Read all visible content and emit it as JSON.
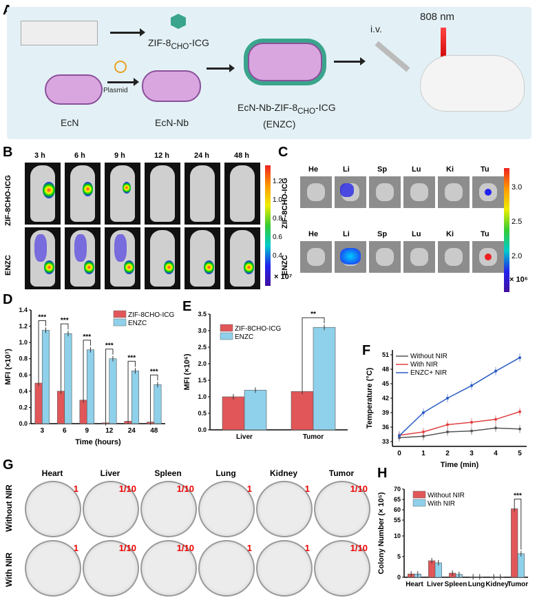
{
  "panels": {
    "A": "A",
    "B": "B",
    "C": "C",
    "D": "D",
    "E": "E",
    "F": "F",
    "G": "G",
    "H": "H"
  },
  "panelA": {
    "zif": "ZIF-8",
    "zif_sub": "CHO",
    "zif_suf": "-ICG",
    "plasmid": "Plasmid",
    "ecn": "EcN",
    "ecnnb": "EcN-Nb",
    "enzc_line1": "EcN-Nb-ZIF-8",
    "enzc_sub": "CHO",
    "enzc_suf": "-ICG",
    "enzc_line2": "(ENZC)",
    "iv": "i.v.",
    "laser": "808 nm"
  },
  "panelB": {
    "times": [
      "3 h",
      "6 h",
      "9 h",
      "12 h",
      "24 h",
      "48 h"
    ],
    "rows": [
      "ZIF-8CHO-ICG",
      "ENZC"
    ],
    "scale_ticks": [
      "1.2",
      "1.0",
      "0.8",
      "0.6",
      "0.4"
    ],
    "scale_unit": "× 10⁷"
  },
  "panelC": {
    "organs": [
      "He",
      "Li",
      "Sp",
      "Lu",
      "Ki",
      "Tu"
    ],
    "rows": [
      "ZIF-8CHO-ICG",
      "ENZC"
    ],
    "scale_ticks": [
      "3.0",
      "2.5",
      "2.0"
    ],
    "scale_unit": "× 10⁶"
  },
  "panelG": {
    "organs": [
      "Heart",
      "Liver",
      "Spleen",
      "Lung",
      "Kidney",
      "Tumor"
    ],
    "rows": [
      "Without NIR",
      "With NIR"
    ],
    "dilutions": [
      [
        "1",
        "1/10",
        "1/10",
        "1",
        "1",
        "1/10"
      ],
      [
        "1",
        "1/10",
        "1/10",
        "1",
        "1",
        "1/10"
      ]
    ]
  },
  "chart_data": [
    {
      "id": "D",
      "type": "bar",
      "categories": [
        "3",
        "6",
        "9",
        "12",
        "24",
        "48"
      ],
      "xlabel": "Time (hours)",
      "ylabel": "MFI (×10⁷)",
      "ylim": [
        0,
        1.4
      ],
      "yticks": [
        "0.0",
        "0.2",
        "0.4",
        "0.6",
        "0.8",
        "1.0",
        "1.2",
        "1.4"
      ],
      "legend": "top-right",
      "series": [
        {
          "name": "ZIF-8CHO-ICG",
          "color": "#e15759",
          "values": [
            0.5,
            0.4,
            0.29,
            0.01,
            0.03,
            0.02
          ]
        },
        {
          "name": "ENZC",
          "color": "#8fd0ea",
          "values": [
            1.15,
            1.11,
            0.91,
            0.8,
            0.65,
            0.48
          ]
        }
      ],
      "significance": [
        "***",
        "***",
        "***",
        "***",
        "***",
        "***"
      ]
    },
    {
      "id": "E",
      "type": "bar",
      "categories": [
        "Liver",
        "Tumor"
      ],
      "xlabel": "",
      "ylabel": "MFI (×10⁶)",
      "ylim": [
        0,
        3.5
      ],
      "yticks": [
        "0.0",
        "0.5",
        "1.0",
        "1.5",
        "2.0",
        "2.5",
        "3.0",
        "3.5"
      ],
      "legend": "top-left",
      "series": [
        {
          "name": "ZIF-8CHO-ICG",
          "color": "#e15759",
          "values": [
            1.0,
            1.16
          ]
        },
        {
          "name": "ENZC",
          "color": "#8fd0ea",
          "values": [
            1.2,
            3.1
          ]
        }
      ],
      "significance": [
        "",
        "**"
      ]
    },
    {
      "id": "F",
      "type": "line",
      "x": [
        0,
        1,
        2,
        3,
        4,
        5
      ],
      "xlabel": "Time (min)",
      "ylabel": "Temperature (°C)",
      "ylim": [
        32,
        52
      ],
      "yticks": [
        "33",
        "36",
        "39",
        "42",
        "45",
        "48",
        "51"
      ],
      "xticks": [
        "0",
        "1",
        "2",
        "3",
        "4",
        "5"
      ],
      "legend": "top-left",
      "series": [
        {
          "name": "Without NIR",
          "color": "#555555",
          "values": [
            33.8,
            34.1,
            35.0,
            35.2,
            35.8,
            35.6
          ]
        },
        {
          "name": "With NIR",
          "color": "#e04040",
          "values": [
            34.3,
            35.0,
            36.5,
            37.0,
            37.6,
            39.2
          ]
        },
        {
          "name": "ENZC+ NIR",
          "color": "#2a5cc4",
          "values": [
            34.2,
            39.0,
            42.0,
            44.6,
            47.6,
            50.4
          ]
        }
      ]
    },
    {
      "id": "H",
      "type": "bar",
      "categories": [
        "Heart",
        "Liver",
        "Spleen",
        "Lung",
        "Kidney",
        "Tumor"
      ],
      "xlabel": "",
      "ylabel": "Colony Number (× 10⁵)",
      "axis_break": [
        10,
        50
      ],
      "ylim": [
        0,
        70
      ],
      "yticks": [
        "0",
        "5",
        "10",
        "55",
        "60",
        "65",
        "70"
      ],
      "legend": "top-left",
      "series": [
        {
          "name": "Without NIR",
          "color": "#e15759",
          "values": [
            0.8,
            4.0,
            1.0,
            0.1,
            0.1,
            60.5
          ]
        },
        {
          "name": "With NIR",
          "color": "#8fd0ea",
          "values": [
            0.8,
            3.5,
            0.7,
            0.1,
            0.1,
            5.7
          ]
        }
      ],
      "significance": [
        "",
        "",
        "",
        "",
        "",
        "***"
      ]
    }
  ]
}
